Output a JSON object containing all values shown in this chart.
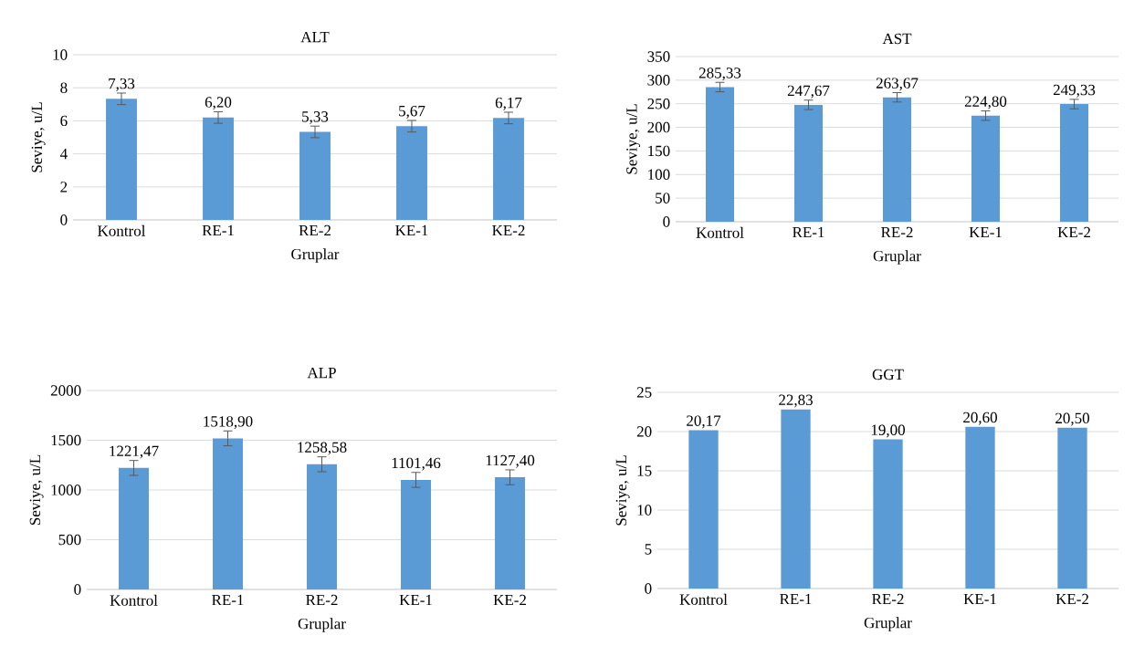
{
  "chart_data": [
    {
      "type": "bar",
      "title": "ALT",
      "xlabel": "Gruplar",
      "ylabel": "Seviye, u/L",
      "categories": [
        "Kontrol",
        "RE-1",
        "RE-2",
        "KE-1",
        "KE-2"
      ],
      "values": [
        7.33,
        6.2,
        5.33,
        5.67,
        6.17
      ],
      "errors": [
        0.35,
        0.35,
        0.35,
        0.35,
        0.35
      ],
      "value_labels": [
        "7,33",
        "6,20",
        "5,33",
        "5,67",
        "6,17"
      ],
      "color": "#5b9bd5",
      "ylim": [
        0,
        10
      ],
      "yticks": [
        0,
        2,
        4,
        6,
        8,
        10
      ],
      "grid": "y"
    },
    {
      "type": "bar",
      "title": "AST",
      "xlabel": "Gruplar",
      "ylabel": "Seviye, u/L",
      "categories": [
        "Kontrol",
        "RE-1",
        "RE-2",
        "KE-1",
        "KE-2"
      ],
      "values": [
        285.33,
        247.67,
        263.67,
        224.8,
        249.33
      ],
      "errors": [
        10,
        10,
        10,
        10,
        10
      ],
      "value_labels": [
        "285,33",
        "247,67",
        "263,67",
        "224,80",
        "249,33"
      ],
      "color": "#5b9bd5",
      "ylim": [
        0,
        350
      ],
      "yticks": [
        0,
        50,
        100,
        150,
        200,
        250,
        300,
        350
      ],
      "grid": "y"
    },
    {
      "type": "bar",
      "title": "ALP",
      "xlabel": "Gruplar",
      "ylabel": "Seviye, u/L",
      "categories": [
        "Kontrol",
        "RE-1",
        "RE-2",
        "KE-1",
        "KE-2"
      ],
      "values": [
        1221.47,
        1518.9,
        1258.58,
        1101.46,
        1127.4
      ],
      "errors": [
        75,
        75,
        75,
        75,
        75
      ],
      "value_labels": [
        "1221,47",
        "1518,90",
        "1258,58",
        "1101,46",
        "1127,40"
      ],
      "color": "#5b9bd5",
      "ylim": [
        0,
        2000
      ],
      "yticks": [
        0,
        500,
        1000,
        1500,
        2000
      ],
      "grid": "y"
    },
    {
      "type": "bar",
      "title": "GGT",
      "xlabel": "Gruplar",
      "ylabel": "Seviye, u/L",
      "categories": [
        "Kontrol",
        "RE-1",
        "RE-2",
        "KE-1",
        "KE-2"
      ],
      "values": [
        20.17,
        22.83,
        19.0,
        20.6,
        20.5
      ],
      "value_labels": [
        "20,17",
        "22,83",
        "19,00",
        "20,60",
        "20,50"
      ],
      "color": "#5b9bd5",
      "ylim": [
        0,
        25
      ],
      "yticks": [
        0,
        5,
        10,
        15,
        20,
        25
      ],
      "grid": "y"
    }
  ]
}
